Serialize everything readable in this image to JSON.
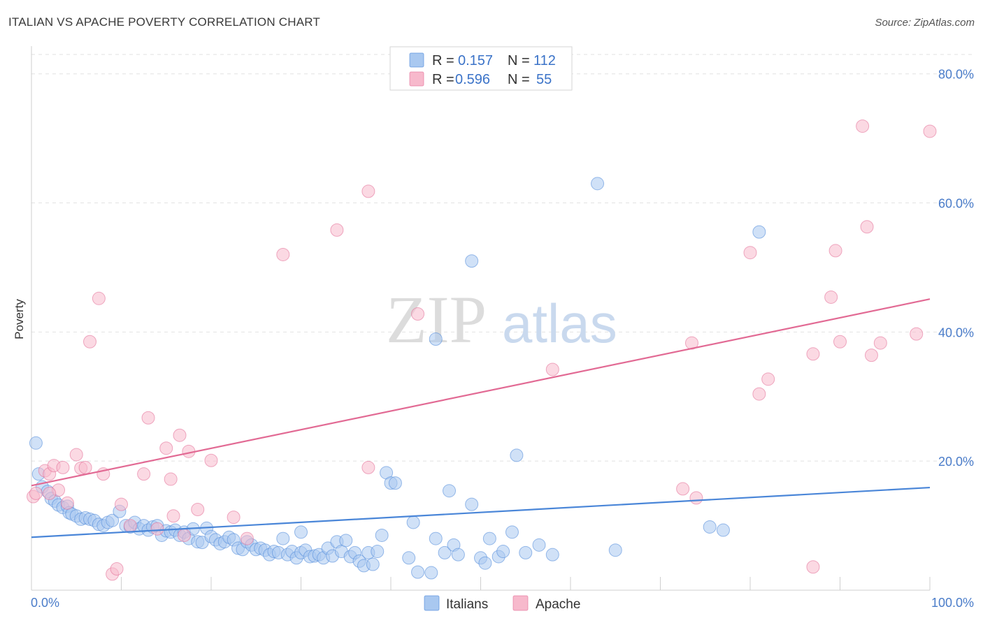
{
  "header": {
    "title": "ITALIAN VS APACHE POVERTY CORRELATION CHART",
    "source": "Source: ZipAtlas.com"
  },
  "watermark": {
    "part1": "ZIP",
    "part2": "atlas"
  },
  "legend_top": {
    "rows": [
      {
        "r_label": "R =",
        "r_value": "0.157",
        "n_label": "N =",
        "n_value": "112",
        "color": "#a9c8f0"
      },
      {
        "r_label": "R =",
        "r_value": "0.596",
        "n_label": "N =",
        "n_value": "55",
        "color": "#f7b9cc"
      }
    ]
  },
  "legend_bottom": {
    "items": [
      {
        "label": "Italians",
        "color": "#a9c8f0"
      },
      {
        "label": "Apache",
        "color": "#f7b9cc"
      }
    ]
  },
  "chart_data": {
    "type": "scatter",
    "title": "ITALIAN VS APACHE POVERTY CORRELATION CHART",
    "xlabel": "",
    "ylabel": "Poverty",
    "xlim": [
      0,
      100
    ],
    "ylim": [
      0,
      83
    ],
    "x_tick_labels": [
      "0.0%",
      "100.0%"
    ],
    "y_ticks": [
      20,
      40,
      60,
      80
    ],
    "y_tick_labels": [
      "20.0%",
      "40.0%",
      "60.0%",
      "80.0%"
    ],
    "grid": true,
    "legend_position": "top-center",
    "series": [
      {
        "name": "Italians",
        "color": "#4a86d8",
        "fill": "#a9c8f0",
        "trend": {
          "x": [
            0,
            100
          ],
          "y": [
            8.2,
            15.9
          ]
        },
        "points": [
          [
            0.5,
            22.8
          ],
          [
            0.8,
            18.0
          ],
          [
            1.2,
            16.0
          ],
          [
            1.8,
            15.3
          ],
          [
            2.2,
            14.2
          ],
          [
            2.6,
            13.8
          ],
          [
            3.0,
            13.2
          ],
          [
            3.5,
            12.8
          ],
          [
            4.0,
            13.0
          ],
          [
            4.2,
            12.0
          ],
          [
            4.5,
            11.8
          ],
          [
            5.0,
            11.5
          ],
          [
            5.5,
            11.0
          ],
          [
            6.0,
            11.2
          ],
          [
            6.5,
            11.0
          ],
          [
            7.0,
            10.8
          ],
          [
            7.5,
            10.2
          ],
          [
            8.0,
            10.0
          ],
          [
            8.5,
            10.5
          ],
          [
            9.0,
            10.8
          ],
          [
            9.8,
            12.2
          ],
          [
            10.5,
            10.0
          ],
          [
            11.0,
            9.8
          ],
          [
            11.5,
            10.5
          ],
          [
            12.0,
            9.5
          ],
          [
            12.5,
            10.0
          ],
          [
            13.0,
            9.3
          ],
          [
            13.5,
            9.8
          ],
          [
            14.0,
            10.0
          ],
          [
            14.5,
            8.5
          ],
          [
            15.0,
            9.2
          ],
          [
            15.5,
            9.0
          ],
          [
            16.0,
            9.3
          ],
          [
            16.5,
            8.5
          ],
          [
            17.0,
            9.0
          ],
          [
            17.5,
            8.0
          ],
          [
            18.0,
            9.5
          ],
          [
            18.5,
            7.5
          ],
          [
            19.0,
            7.4
          ],
          [
            19.5,
            9.6
          ],
          [
            20.0,
            8.3
          ],
          [
            20.5,
            7.8
          ],
          [
            21.0,
            7.2
          ],
          [
            21.5,
            7.5
          ],
          [
            22.0,
            8.2
          ],
          [
            22.5,
            7.8
          ],
          [
            23.0,
            6.5
          ],
          [
            23.5,
            6.3
          ],
          [
            24.0,
            7.5
          ],
          [
            24.5,
            7.0
          ],
          [
            25.0,
            6.3
          ],
          [
            25.5,
            6.5
          ],
          [
            26.0,
            6.2
          ],
          [
            26.5,
            5.5
          ],
          [
            27.0,
            6.0
          ],
          [
            27.5,
            5.8
          ],
          [
            28.0,
            8.0
          ],
          [
            28.5,
            5.5
          ],
          [
            29.0,
            6.0
          ],
          [
            29.5,
            5.0
          ],
          [
            30.0,
            5.8
          ],
          [
            30.5,
            6.2
          ],
          [
            31.0,
            5.2
          ],
          [
            31.5,
            5.3
          ],
          [
            32.0,
            5.5
          ],
          [
            32.5,
            5.0
          ],
          [
            33.0,
            6.5
          ],
          [
            33.5,
            5.3
          ],
          [
            34.0,
            7.5
          ],
          [
            34.5,
            6.0
          ],
          [
            35.0,
            7.7
          ],
          [
            35.5,
            5.2
          ],
          [
            36.0,
            5.8
          ],
          [
            36.5,
            4.5
          ],
          [
            37.0,
            3.8
          ],
          [
            37.5,
            5.8
          ],
          [
            38.0,
            4.0
          ],
          [
            38.5,
            6.0
          ],
          [
            39.0,
            8.5
          ],
          [
            39.5,
            18.2
          ],
          [
            40.0,
            16.6
          ],
          [
            40.5,
            16.6
          ],
          [
            42.0,
            5.0
          ],
          [
            42.5,
            10.5
          ],
          [
            43.0,
            2.8
          ],
          [
            44.5,
            2.7
          ],
          [
            45.0,
            8.0
          ],
          [
            46.0,
            5.8
          ],
          [
            46.5,
            15.4
          ],
          [
            47.0,
            7.0
          ],
          [
            47.5,
            5.5
          ],
          [
            49.0,
            13.3
          ],
          [
            50.0,
            5.0
          ],
          [
            50.5,
            4.2
          ],
          [
            51.0,
            8.0
          ],
          [
            52.0,
            5.2
          ],
          [
            52.5,
            6.0
          ],
          [
            53.5,
            9.0
          ],
          [
            54.0,
            20.9
          ],
          [
            55.0,
            5.8
          ],
          [
            56.5,
            7.0
          ],
          [
            58.0,
            5.5
          ],
          [
            63.0,
            63.0
          ],
          [
            65.0,
            6.2
          ],
          [
            75.5,
            9.8
          ],
          [
            77.0,
            9.3
          ],
          [
            81.0,
            55.5
          ],
          [
            49.0,
            51.0
          ],
          [
            45.0,
            38.9
          ],
          [
            30.0,
            9.0
          ]
        ]
      },
      {
        "name": "Apache",
        "color": "#e26a94",
        "fill": "#f7b9cc",
        "trend": {
          "x": [
            0,
            100
          ],
          "y": [
            16.2,
            45.1
          ]
        },
        "points": [
          [
            0.2,
            14.5
          ],
          [
            0.5,
            15.0
          ],
          [
            1.5,
            18.5
          ],
          [
            2.0,
            18.0
          ],
          [
            2.5,
            19.3
          ],
          [
            3.0,
            15.5
          ],
          [
            3.5,
            19.0
          ],
          [
            4.0,
            13.5
          ],
          [
            5.0,
            21.0
          ],
          [
            5.5,
            18.9
          ],
          [
            6.0,
            19.0
          ],
          [
            6.5,
            38.5
          ],
          [
            7.5,
            45.2
          ],
          [
            8.0,
            18.0
          ],
          [
            9.0,
            2.5
          ],
          [
            9.5,
            3.3
          ],
          [
            10.0,
            13.3
          ],
          [
            11.0,
            10.0
          ],
          [
            12.5,
            18.0
          ],
          [
            13.0,
            26.7
          ],
          [
            14.0,
            9.5
          ],
          [
            15.0,
            22.0
          ],
          [
            15.5,
            17.2
          ],
          [
            15.8,
            11.5
          ],
          [
            16.5,
            24.0
          ],
          [
            17.0,
            8.5
          ],
          [
            17.5,
            21.5
          ],
          [
            18.5,
            12.5
          ],
          [
            20.0,
            20.1
          ],
          [
            22.5,
            11.3
          ],
          [
            24.0,
            8.0
          ],
          [
            28.0,
            52.0
          ],
          [
            34.0,
            55.8
          ],
          [
            37.5,
            61.8
          ],
          [
            37.5,
            19.0
          ],
          [
            43.0,
            42.8
          ],
          [
            58.0,
            34.2
          ],
          [
            72.5,
            15.7
          ],
          [
            73.5,
            38.3
          ],
          [
            74.0,
            14.3
          ],
          [
            80.0,
            52.3
          ],
          [
            81.0,
            30.4
          ],
          [
            82.0,
            32.7
          ],
          [
            87.0,
            36.6
          ],
          [
            87.0,
            3.6
          ],
          [
            89.0,
            45.4
          ],
          [
            89.5,
            52.6
          ],
          [
            90.0,
            38.5
          ],
          [
            92.5,
            71.9
          ],
          [
            93.0,
            56.3
          ],
          [
            93.5,
            36.4
          ],
          [
            94.5,
            38.3
          ],
          [
            98.5,
            39.7
          ],
          [
            100.0,
            71.1
          ],
          [
            2.0,
            15.0
          ]
        ]
      }
    ]
  }
}
